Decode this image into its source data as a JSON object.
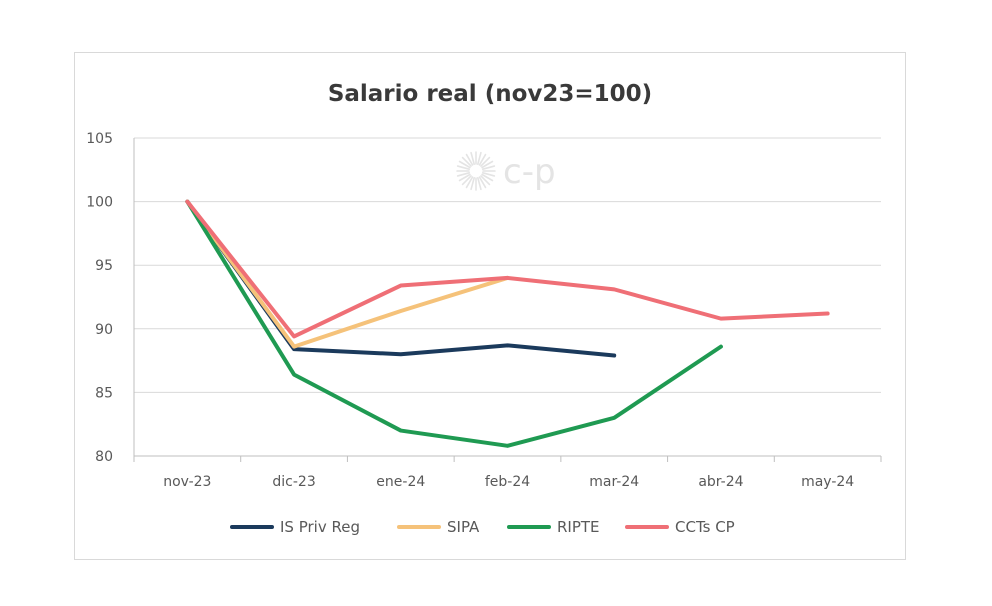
{
  "chart_data": {
    "type": "line",
    "title": "Salario real (nov23=100)",
    "xlabel": "",
    "ylabel": "",
    "categories": [
      "nov-23",
      "dic-23",
      "ene-24",
      "feb-24",
      "mar-24",
      "abr-24",
      "may-24"
    ],
    "ylim": [
      80,
      105
    ],
    "yticks": [
      80,
      85,
      90,
      95,
      100,
      105
    ],
    "grid": true,
    "legend_position": "bottom",
    "watermark": "c-p",
    "series": [
      {
        "name": "IS Priv Reg",
        "color": "#1b3a5c",
        "values": [
          100,
          88.4,
          88.0,
          88.7,
          87.9,
          null,
          null
        ]
      },
      {
        "name": "SIPA",
        "color": "#f5c27a",
        "values": [
          100,
          88.6,
          91.4,
          94.0,
          null,
          null,
          null
        ]
      },
      {
        "name": "RIPTE",
        "color": "#1f9a52",
        "values": [
          100,
          86.4,
          82.0,
          80.8,
          83.0,
          88.6,
          null
        ]
      },
      {
        "name": "CCTs CP",
        "color": "#ef6f76",
        "values": [
          100,
          89.4,
          93.4,
          94.0,
          93.1,
          90.8,
          91.2
        ]
      }
    ]
  }
}
